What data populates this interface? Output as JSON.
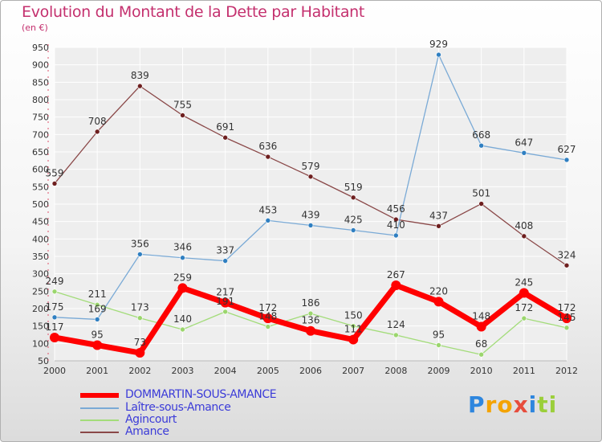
{
  "header": {
    "title": "Evolution du Montant de la Dette par Habitant",
    "unit": "(en €)"
  },
  "logo": {
    "letters": [
      "P",
      "r",
      "o",
      "x",
      "i",
      "t",
      "i"
    ],
    "colors": [
      "#2e86de",
      "#f4a300",
      "#f4a300",
      "#e74c3c",
      "#2e86de",
      "#9bcf3a",
      "#9bcf3a"
    ]
  },
  "chart_data": {
    "type": "line",
    "categories": [
      "2000",
      "2001",
      "2002",
      "2003",
      "2004",
      "2005",
      "2006",
      "2007",
      "2008",
      "2009",
      "2010",
      "2011",
      "2012"
    ],
    "ylim": [
      50,
      950
    ],
    "yticks": [
      50,
      100,
      150,
      200,
      250,
      300,
      350,
      400,
      450,
      500,
      550,
      600,
      650,
      700,
      750,
      800,
      850,
      900,
      950
    ],
    "grid": true,
    "legend_position": "bottom",
    "series": [
      {
        "name": "DOMMARTIN-SOUS-AMANCE",
        "color": "#ff0000",
        "marker": "#ff0000",
        "width": 7,
        "values": [
          117,
          95,
          73,
          259,
          217,
          172,
          136,
          111,
          267,
          220,
          148,
          245,
          172
        ],
        "labels": [
          "117",
          "95",
          "73",
          "259",
          "217",
          "172",
          "136",
          "111",
          "267",
          "220",
          "148",
          "245",
          "172"
        ]
      },
      {
        "name": "Laître-sous-Amance",
        "color": "#7aaad6",
        "marker": "#2f7fc1",
        "width": 1.3,
        "values": [
          175,
          169,
          356,
          346,
          337,
          453,
          439,
          425,
          410,
          929,
          668,
          647,
          627
        ],
        "labels": [
          "175",
          "169",
          "356",
          "346",
          "337",
          "453",
          "439",
          "425",
          "410",
          "929",
          "668",
          "647",
          "627"
        ]
      },
      {
        "name": "Agincourt",
        "color": "#a3dc7a",
        "marker": "#9bd66d",
        "width": 1.3,
        "values": [
          249,
          211,
          173,
          140,
          191,
          148,
          186,
          150,
          124,
          95,
          68,
          172,
          145
        ],
        "labels": [
          "249",
          "211",
          "173",
          "140",
          "191",
          "148",
          "186",
          "150",
          "124",
          "95",
          "68",
          "172",
          "145"
        ]
      },
      {
        "name": "Amance",
        "color": "#8a4848",
        "marker": "#6e1f1f",
        "width": 1.3,
        "values": [
          559,
          708,
          839,
          755,
          691,
          636,
          579,
          519,
          456,
          437,
          501,
          408,
          324
        ],
        "labels": [
          "559",
          "708",
          "839",
          "755",
          "691",
          "636",
          "579",
          "519",
          "456",
          "437",
          "501",
          "408",
          "324"
        ]
      }
    ]
  }
}
